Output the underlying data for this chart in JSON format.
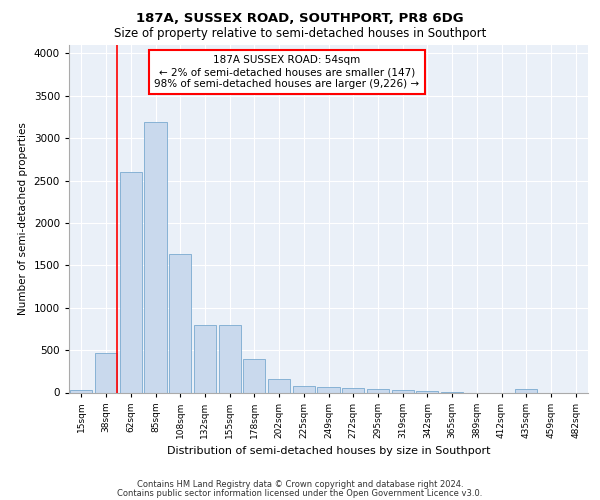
{
  "title1": "187A, SUSSEX ROAD, SOUTHPORT, PR8 6DG",
  "title2": "Size of property relative to semi-detached houses in Southport",
  "xlabel": "Distribution of semi-detached houses by size in Southport",
  "ylabel": "Number of semi-detached properties",
  "categories": [
    "15sqm",
    "38sqm",
    "62sqm",
    "85sqm",
    "108sqm",
    "132sqm",
    "155sqm",
    "178sqm",
    "202sqm",
    "225sqm",
    "249sqm",
    "272sqm",
    "295sqm",
    "319sqm",
    "342sqm",
    "365sqm",
    "389sqm",
    "412sqm",
    "435sqm",
    "459sqm",
    "482sqm"
  ],
  "values": [
    30,
    470,
    2600,
    3190,
    1630,
    800,
    800,
    390,
    160,
    80,
    60,
    55,
    40,
    30,
    20,
    5,
    0,
    0,
    40,
    0,
    0
  ],
  "bar_color": "#c9d9ed",
  "bar_edge_color": "#7aaad0",
  "annotation_text": "187A SUSSEX ROAD: 54sqm\n← 2% of semi-detached houses are smaller (147)\n98% of semi-detached houses are larger (9,226) →",
  "ylim": [
    0,
    4100
  ],
  "yticks": [
    0,
    500,
    1000,
    1500,
    2000,
    2500,
    3000,
    3500,
    4000
  ],
  "footer1": "Contains HM Land Registry data © Crown copyright and database right 2024.",
  "footer2": "Contains public sector information licensed under the Open Government Licence v3.0.",
  "plot_bg_color": "#eaf0f8",
  "title1_fontsize": 9.5,
  "title2_fontsize": 8.5,
  "red_line_xbin": 1.43
}
